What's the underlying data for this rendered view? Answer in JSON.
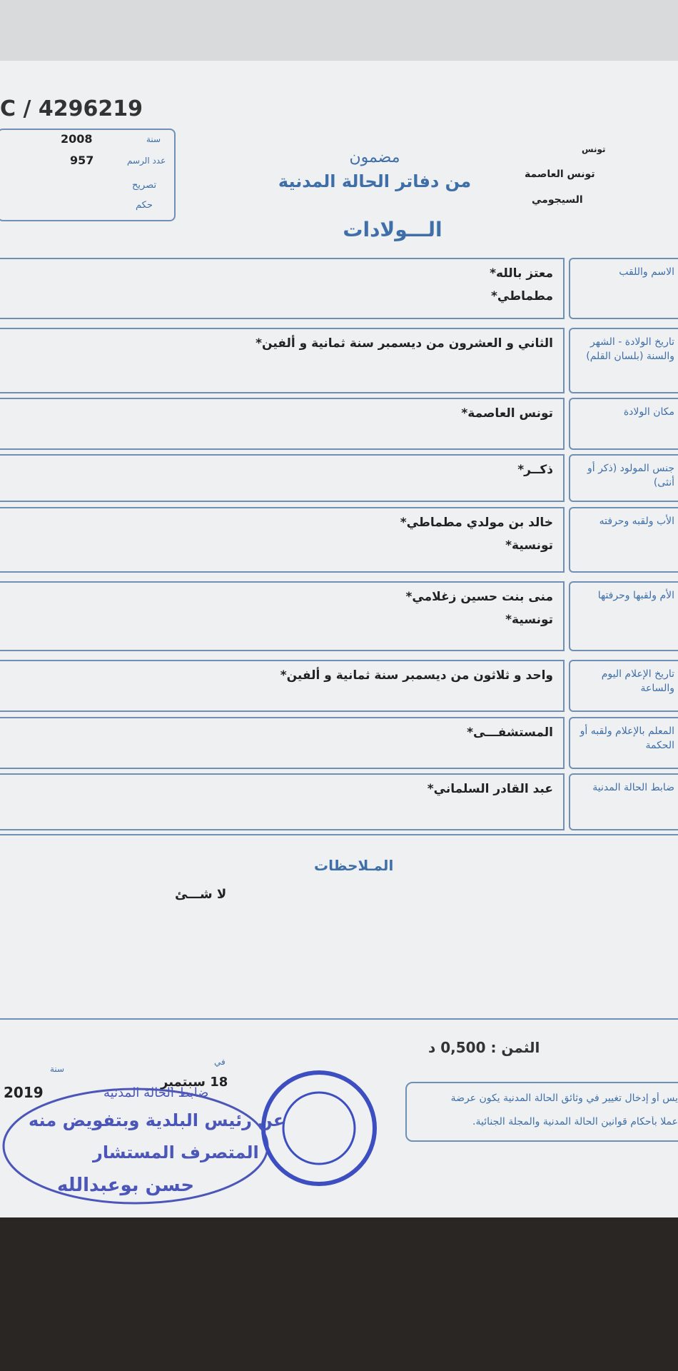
{
  "header": {
    "serial": "C / 4296219",
    "year_label": "سنة",
    "year": "2008",
    "number_label": "عدد الرسم",
    "number": "957",
    "declaration": "تصريح",
    "judgment": "حكم",
    "city": "تونس",
    "municipality": "تونس العاصمة",
    "district": "السيجومي",
    "title_line1": "مضمون",
    "title_line2": "من دفاتر الحالة المدنية",
    "title": "الـــولادات"
  },
  "rows": [
    {
      "label": "الاسم واللقب",
      "lines": [
        "معتز بالله*",
        "مطماطي*"
      ]
    },
    {
      "label": "تاريخ الولادة - الشهر والسنة (بلسان القلم)",
      "lines": [
        "الثاني و العشرون من ديسمبر سنة ثمانية و ألفين*"
      ]
    },
    {
      "label": "مكان الولادة",
      "lines": [
        "تونس العاصمة*"
      ]
    },
    {
      "label": "جنس المولود (ذكر أو أنثى)",
      "lines": [
        "ذكــر*"
      ]
    },
    {
      "label": "الأب ولقبه وحرفته",
      "lines": [
        "خالد بن مولدي مطماطي*",
        "تونسية*"
      ]
    },
    {
      "label": "الأم ولقبها وحرفتها",
      "lines": [
        "منى بنت حسين زغلامي*",
        "تونسية*"
      ]
    },
    {
      "label": "تاريخ الإعلام اليوم والساعة",
      "lines": [
        "واحد و ثلاثون من ديسمبر سنة ثمانية و ألفين*"
      ]
    },
    {
      "label": "المعلم بالإعلام ولقبه أو الحكمة",
      "lines": [
        "المستشفـــى*"
      ]
    },
    {
      "label": "ضابط الحالة المدنية",
      "lines": [
        "عبد القادر السلماني*"
      ]
    }
  ],
  "remarks": {
    "title": "المـلاحظات",
    "text": "لا شـــئ"
  },
  "footer": {
    "price": "الثمن : 0,500 د",
    "on": "في",
    "date": "18 سبتمبر",
    "year_label": "سنة",
    "year": "2019",
    "notice_line1": "يس أو إدخال تغيير في وثائق الحالة المدنية يكون عرضة",
    "notice_line2": "عملا بأحكام قوانين الحالة المدنية والمجلة الجنائية."
  },
  "stamp": {
    "line1": "ضابط الحالة المدنية",
    "line2": "عن رئيس البلدية وبتفويض منه",
    "line3": "المتصرف المستشار",
    "line4": "حسن بوعبدالله"
  }
}
